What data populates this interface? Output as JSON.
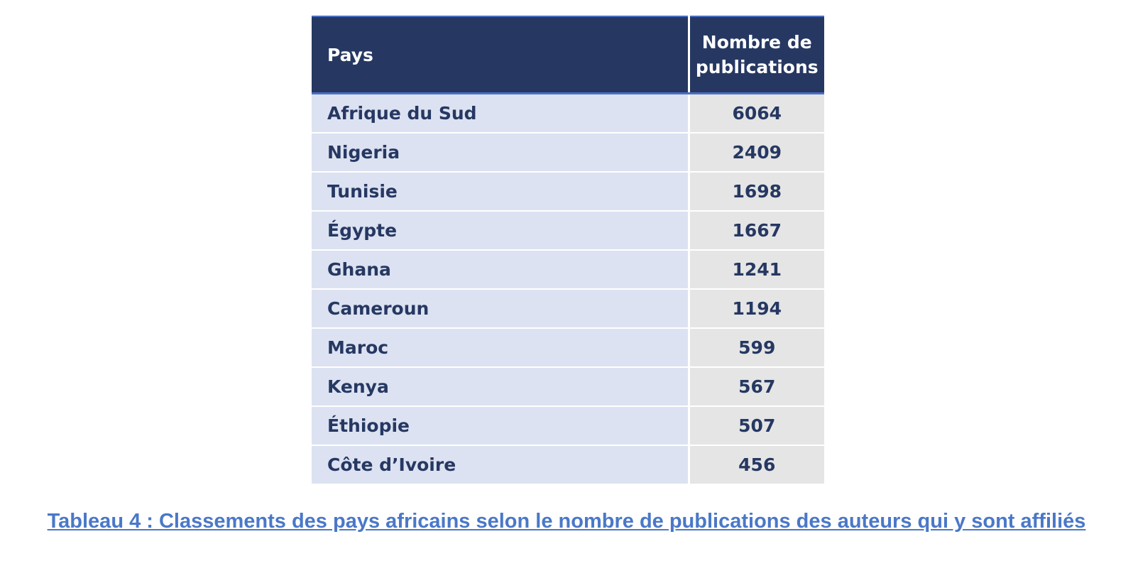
{
  "table": {
    "headers": {
      "country": "Pays",
      "count": "Nombre de publications"
    },
    "rows": [
      {
        "country": "Afrique du Sud",
        "count": "6064"
      },
      {
        "country": "Nigeria",
        "count": "2409"
      },
      {
        "country": "Tunisie",
        "count": "1698"
      },
      {
        "country": "Égypte",
        "count": "1667"
      },
      {
        "country": "Ghana",
        "count": "1241"
      },
      {
        "country": "Cameroun",
        "count": "1194"
      },
      {
        "country": "Maroc",
        "count": "599"
      },
      {
        "country": "Kenya",
        "count": "567"
      },
      {
        "country": "Éthiopie",
        "count": "507"
      },
      {
        "country": "Côte d’Ivoire",
        "count": "456"
      }
    ]
  },
  "caption": "Tableau 4 : Classements des pays africains selon le nombre de publications des auteurs qui y sont affiliés",
  "colors": {
    "header_background": "#263862",
    "header_rule": "#4a6fc4",
    "country_cell_background": "#dce2f1",
    "count_cell_background": "#e5e5e5",
    "body_text": "#263862",
    "caption_text": "#4a78c8"
  }
}
